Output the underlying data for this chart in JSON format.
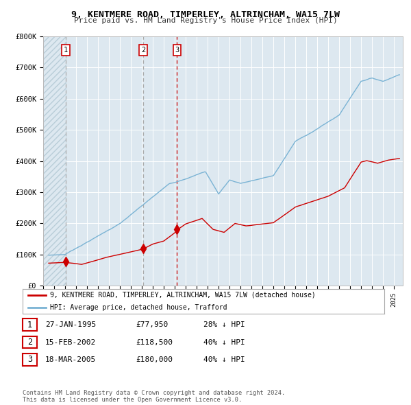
{
  "title": "9, KENTMERE ROAD, TIMPERLEY, ALTRINCHAM, WA15 7LW",
  "subtitle": "Price paid vs. HM Land Registry's House Price Index (HPI)",
  "bg_color": "#dde8f0",
  "hatch_color": "#b8cdd8",
  "red_line_color": "#cc0000",
  "blue_line_color": "#7ab3d4",
  "sale1_x": 1995.07,
  "sale1_y": 77950,
  "sale2_x": 2002.12,
  "sale2_y": 118500,
  "sale3_x": 2005.21,
  "sale3_y": 180000,
  "ylim": [
    0,
    800000
  ],
  "xlim": [
    1993.0,
    2025.8
  ],
  "ytick_vals": [
    0,
    100000,
    200000,
    300000,
    400000,
    500000,
    600000,
    700000,
    800000
  ],
  "ytick_labels": [
    "£0",
    "£100K",
    "£200K",
    "£300K",
    "£400K",
    "£500K",
    "£600K",
    "£700K",
    "£800K"
  ],
  "legend_entries": [
    "9, KENTMERE ROAD, TIMPERLEY, ALTRINCHAM, WA15 7LW (detached house)",
    "HPI: Average price, detached house, Trafford"
  ],
  "table_rows": [
    {
      "num": "1",
      "date": "27-JAN-1995",
      "price": "£77,950",
      "hpi": "28% ↓ HPI"
    },
    {
      "num": "2",
      "date": "15-FEB-2002",
      "price": "£118,500",
      "hpi": "40% ↓ HPI"
    },
    {
      "num": "3",
      "date": "18-MAR-2005",
      "price": "£180,000",
      "hpi": "40% ↓ HPI"
    }
  ],
  "footer": "Contains HM Land Registry data © Crown copyright and database right 2024.\nThis data is licensed under the Open Government Licence v3.0."
}
